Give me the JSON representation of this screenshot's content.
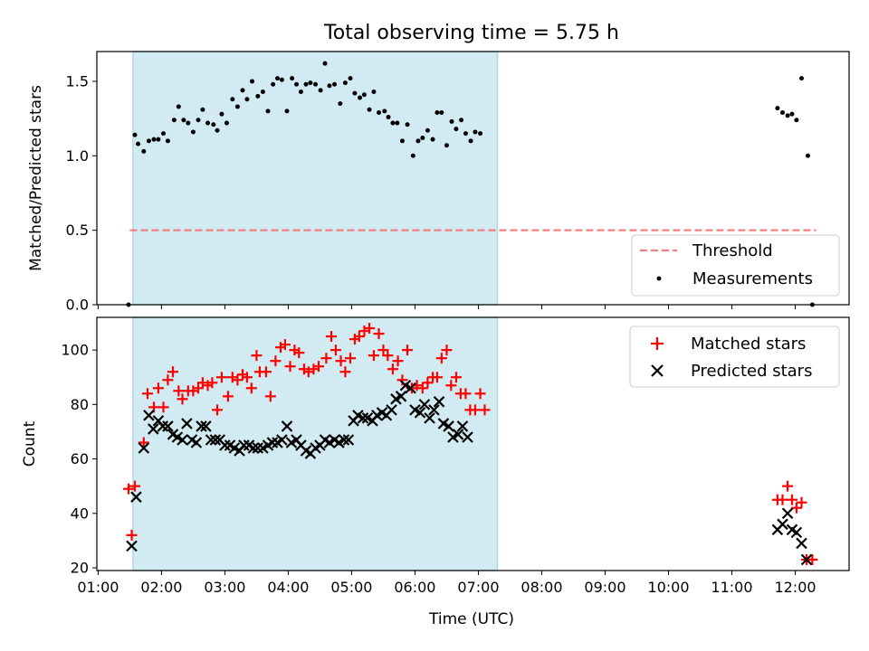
{
  "figure": {
    "title": "Total observing time = 5.75 h"
  },
  "colors": {
    "matched": "#ff0000",
    "predicted": "#000000",
    "threshold": "#f08080",
    "measurement": "#000000",
    "shade": "#add8e6"
  },
  "chart_data": [
    {
      "type": "scatter",
      "panel": "top",
      "ylabel": "Matched/Predicted stars",
      "xlabel": "",
      "xlim": [
        0.98,
        12.85
      ],
      "ylim": [
        0.0,
        1.7
      ],
      "yticks": [
        0.0,
        0.5,
        1.0,
        1.5
      ],
      "ytick_labels": [
        "0.0",
        "0.5",
        "1.0",
        "1.5"
      ],
      "xticks": [
        1,
        2,
        3,
        4,
        5,
        6,
        7,
        8,
        9,
        10,
        11,
        12
      ],
      "shaded_region": [
        1.55,
        7.3
      ],
      "legend": {
        "placement": "lower-right",
        "entries": [
          "Threshold",
          "Measurements"
        ]
      },
      "threshold": {
        "name": "Threshold",
        "y": 0.5,
        "x": [
          1.5,
          12.33
        ]
      },
      "series": [
        {
          "name": "Measurements",
          "points": [
            [
              1.48,
              0.0
            ],
            [
              1.58,
              1.14
            ],
            [
              1.63,
              1.08
            ],
            [
              1.72,
              1.03
            ],
            [
              1.8,
              1.1
            ],
            [
              1.88,
              1.11
            ],
            [
              1.95,
              1.11
            ],
            [
              2.03,
              1.15
            ],
            [
              2.1,
              1.1
            ],
            [
              2.2,
              1.24
            ],
            [
              2.27,
              1.33
            ],
            [
              2.35,
              1.24
            ],
            [
              2.42,
              1.22
            ],
            [
              2.5,
              1.16
            ],
            [
              2.58,
              1.24
            ],
            [
              2.65,
              1.31
            ],
            [
              2.73,
              1.22
            ],
            [
              2.82,
              1.21
            ],
            [
              2.88,
              1.17
            ],
            [
              2.95,
              1.28
            ],
            [
              3.03,
              1.22
            ],
            [
              3.12,
              1.38
            ],
            [
              3.2,
              1.33
            ],
            [
              3.28,
              1.44
            ],
            [
              3.35,
              1.38
            ],
            [
              3.43,
              1.5
            ],
            [
              3.52,
              1.4
            ],
            [
              3.6,
              1.43
            ],
            [
              3.68,
              1.3
            ],
            [
              3.76,
              1.48
            ],
            [
              3.83,
              1.52
            ],
            [
              3.9,
              1.51
            ],
            [
              3.98,
              1.3
            ],
            [
              4.06,
              1.52
            ],
            [
              4.13,
              1.48
            ],
            [
              4.2,
              1.43
            ],
            [
              4.28,
              1.48
            ],
            [
              4.35,
              1.49
            ],
            [
              4.43,
              1.48
            ],
            [
              4.51,
              1.44
            ],
            [
              4.58,
              1.62
            ],
            [
              4.65,
              1.47
            ],
            [
              4.73,
              1.48
            ],
            [
              4.82,
              1.35
            ],
            [
              4.9,
              1.49
            ],
            [
              4.98,
              1.52
            ],
            [
              5.05,
              1.42
            ],
            [
              5.13,
              1.39
            ],
            [
              5.2,
              1.41
            ],
            [
              5.28,
              1.31
            ],
            [
              5.35,
              1.43
            ],
            [
              5.43,
              1.29
            ],
            [
              5.52,
              1.3
            ],
            [
              5.58,
              1.26
            ],
            [
              5.65,
              1.22
            ],
            [
              5.72,
              1.22
            ],
            [
              5.8,
              1.1
            ],
            [
              5.88,
              1.21
            ],
            [
              5.97,
              1.0
            ],
            [
              6.05,
              1.1
            ],
            [
              6.12,
              1.12
            ],
            [
              6.2,
              1.17
            ],
            [
              6.28,
              1.11
            ],
            [
              6.35,
              1.29
            ],
            [
              6.42,
              1.29
            ],
            [
              6.5,
              1.07
            ],
            [
              6.58,
              1.23
            ],
            [
              6.65,
              1.18
            ],
            [
              6.73,
              1.24
            ],
            [
              6.8,
              1.15
            ],
            [
              6.88,
              1.1
            ],
            [
              6.95,
              1.16
            ],
            [
              7.03,
              1.15
            ],
            [
              11.72,
              1.32
            ],
            [
              11.8,
              1.29
            ],
            [
              11.88,
              1.27
            ],
            [
              11.95,
              1.28
            ],
            [
              12.02,
              1.24
            ],
            [
              12.1,
              1.52
            ],
            [
              12.2,
              1.0
            ],
            [
              12.27,
              0.0
            ]
          ]
        }
      ]
    },
    {
      "type": "scatter",
      "panel": "bottom",
      "ylabel": "Count",
      "xlabel": "Time (UTC)",
      "xlim": [
        0.98,
        12.85
      ],
      "ylim": [
        19,
        112
      ],
      "yticks": [
        20,
        40,
        60,
        80,
        100
      ],
      "ytick_labels": [
        "20",
        "40",
        "60",
        "80",
        "100"
      ],
      "xticks": [
        1,
        2,
        3,
        4,
        5,
        6,
        7,
        8,
        9,
        10,
        11,
        12
      ],
      "xtick_labels": [
        "01:00",
        "02:00",
        "03:00",
        "04:00",
        "05:00",
        "06:00",
        "07:00",
        "08:00",
        "09:00",
        "10:00",
        "11:00",
        "12:00"
      ],
      "shaded_region": [
        1.55,
        7.3
      ],
      "legend": {
        "placement": "upper-right",
        "entries": [
          "Matched stars",
          "Predicted stars"
        ]
      },
      "series": [
        {
          "name": "Matched stars",
          "marker": "plus",
          "points": [
            [
              1.48,
              49
            ],
            [
              1.53,
              32
            ],
            [
              1.58,
              50
            ],
            [
              1.72,
              66
            ],
            [
              1.78,
              84
            ],
            [
              1.88,
              79
            ],
            [
              1.95,
              86
            ],
            [
              2.03,
              79
            ],
            [
              2.1,
              89
            ],
            [
              2.18,
              92
            ],
            [
              2.27,
              85
            ],
            [
              2.33,
              82
            ],
            [
              2.42,
              85
            ],
            [
              2.5,
              85
            ],
            [
              2.58,
              86
            ],
            [
              2.65,
              88
            ],
            [
              2.73,
              87
            ],
            [
              2.8,
              88
            ],
            [
              2.88,
              78
            ],
            [
              2.95,
              90
            ],
            [
              3.05,
              83
            ],
            [
              3.12,
              90
            ],
            [
              3.2,
              89
            ],
            [
              3.28,
              91
            ],
            [
              3.35,
              90
            ],
            [
              3.42,
              86
            ],
            [
              3.5,
              98
            ],
            [
              3.55,
              92
            ],
            [
              3.65,
              92
            ],
            [
              3.72,
              83
            ],
            [
              3.8,
              96
            ],
            [
              3.88,
              101
            ],
            [
              3.95,
              102
            ],
            [
              4.03,
              94
            ],
            [
              4.1,
              100
            ],
            [
              4.17,
              99
            ],
            [
              4.25,
              93
            ],
            [
              4.32,
              92
            ],
            [
              4.4,
              93
            ],
            [
              4.48,
              94
            ],
            [
              4.6,
              97
            ],
            [
              4.68,
              105
            ],
            [
              4.75,
              100
            ],
            [
              4.83,
              96
            ],
            [
              4.9,
              92
            ],
            [
              4.98,
              97
            ],
            [
              5.05,
              104
            ],
            [
              5.12,
              105
            ],
            [
              5.2,
              107
            ],
            [
              5.28,
              108
            ],
            [
              5.35,
              98
            ],
            [
              5.43,
              106
            ],
            [
              5.5,
              100
            ],
            [
              5.57,
              98
            ],
            [
              5.65,
              93
            ],
            [
              5.73,
              96
            ],
            [
              5.8,
              89
            ],
            [
              5.88,
              100
            ],
            [
              5.95,
              86
            ],
            [
              6.03,
              87
            ],
            [
              6.12,
              86
            ],
            [
              6.2,
              88
            ],
            [
              6.28,
              90
            ],
            [
              6.35,
              90
            ],
            [
              6.42,
              97
            ],
            [
              6.5,
              100
            ],
            [
              6.57,
              87
            ],
            [
              6.65,
              90
            ],
            [
              6.72,
              84
            ],
            [
              6.8,
              84
            ],
            [
              6.87,
              78
            ],
            [
              6.95,
              78
            ],
            [
              7.03,
              84
            ],
            [
              7.1,
              78
            ],
            [
              11.72,
              45
            ],
            [
              11.8,
              45
            ],
            [
              11.88,
              50
            ],
            [
              11.95,
              45
            ],
            [
              12.02,
              42
            ],
            [
              12.1,
              44
            ],
            [
              12.18,
              23
            ],
            [
              12.27,
              23
            ]
          ]
        },
        {
          "name": "Predicted stars",
          "marker": "x",
          "points": [
            [
              1.53,
              28
            ],
            [
              1.6,
              46
            ],
            [
              1.72,
              64
            ],
            [
              1.8,
              76
            ],
            [
              1.87,
              71
            ],
            [
              1.95,
              74
            ],
            [
              2.02,
              72
            ],
            [
              2.1,
              72
            ],
            [
              2.18,
              69
            ],
            [
              2.25,
              68
            ],
            [
              2.33,
              67
            ],
            [
              2.4,
              73
            ],
            [
              2.48,
              67
            ],
            [
              2.55,
              66
            ],
            [
              2.63,
              72
            ],
            [
              2.7,
              72
            ],
            [
              2.78,
              67
            ],
            [
              2.85,
              67
            ],
            [
              2.92,
              67
            ],
            [
              3.0,
              65
            ],
            [
              3.08,
              65
            ],
            [
              3.15,
              64
            ],
            [
              3.23,
              63
            ],
            [
              3.3,
              65
            ],
            [
              3.38,
              65
            ],
            [
              3.45,
              64
            ],
            [
              3.52,
              64
            ],
            [
              3.6,
              64
            ],
            [
              3.68,
              65
            ],
            [
              3.75,
              66
            ],
            [
              3.83,
              66
            ],
            [
              3.9,
              67
            ],
            [
              3.98,
              72
            ],
            [
              4.05,
              66
            ],
            [
              4.13,
              67
            ],
            [
              4.2,
              65
            ],
            [
              4.28,
              63
            ],
            [
              4.35,
              62
            ],
            [
              4.43,
              64
            ],
            [
              4.5,
              65
            ],
            [
              4.58,
              67
            ],
            [
              4.65,
              66
            ],
            [
              4.73,
              67
            ],
            [
              4.8,
              66
            ],
            [
              4.88,
              67
            ],
            [
              4.95,
              67
            ],
            [
              5.03,
              74
            ],
            [
              5.1,
              76
            ],
            [
              5.18,
              75
            ],
            [
              5.25,
              75
            ],
            [
              5.33,
              74
            ],
            [
              5.4,
              76
            ],
            [
              5.48,
              77
            ],
            [
              5.55,
              76
            ],
            [
              5.63,
              78
            ],
            [
              5.7,
              82
            ],
            [
              5.78,
              83
            ],
            [
              5.85,
              87
            ],
            [
              5.93,
              86
            ],
            [
              6.0,
              78
            ],
            [
              6.08,
              77
            ],
            [
              6.15,
              80
            ],
            [
              6.23,
              75
            ],
            [
              6.3,
              78
            ],
            [
              6.38,
              81
            ],
            [
              6.45,
              73
            ],
            [
              6.53,
              72
            ],
            [
              6.6,
              68
            ],
            [
              6.68,
              69
            ],
            [
              6.75,
              72
            ],
            [
              6.83,
              68
            ],
            [
              11.72,
              34
            ],
            [
              11.8,
              36
            ],
            [
              11.88,
              40
            ],
            [
              11.95,
              34
            ],
            [
              12.02,
              33
            ],
            [
              12.1,
              29
            ],
            [
              12.18,
              23
            ]
          ]
        }
      ]
    }
  ]
}
